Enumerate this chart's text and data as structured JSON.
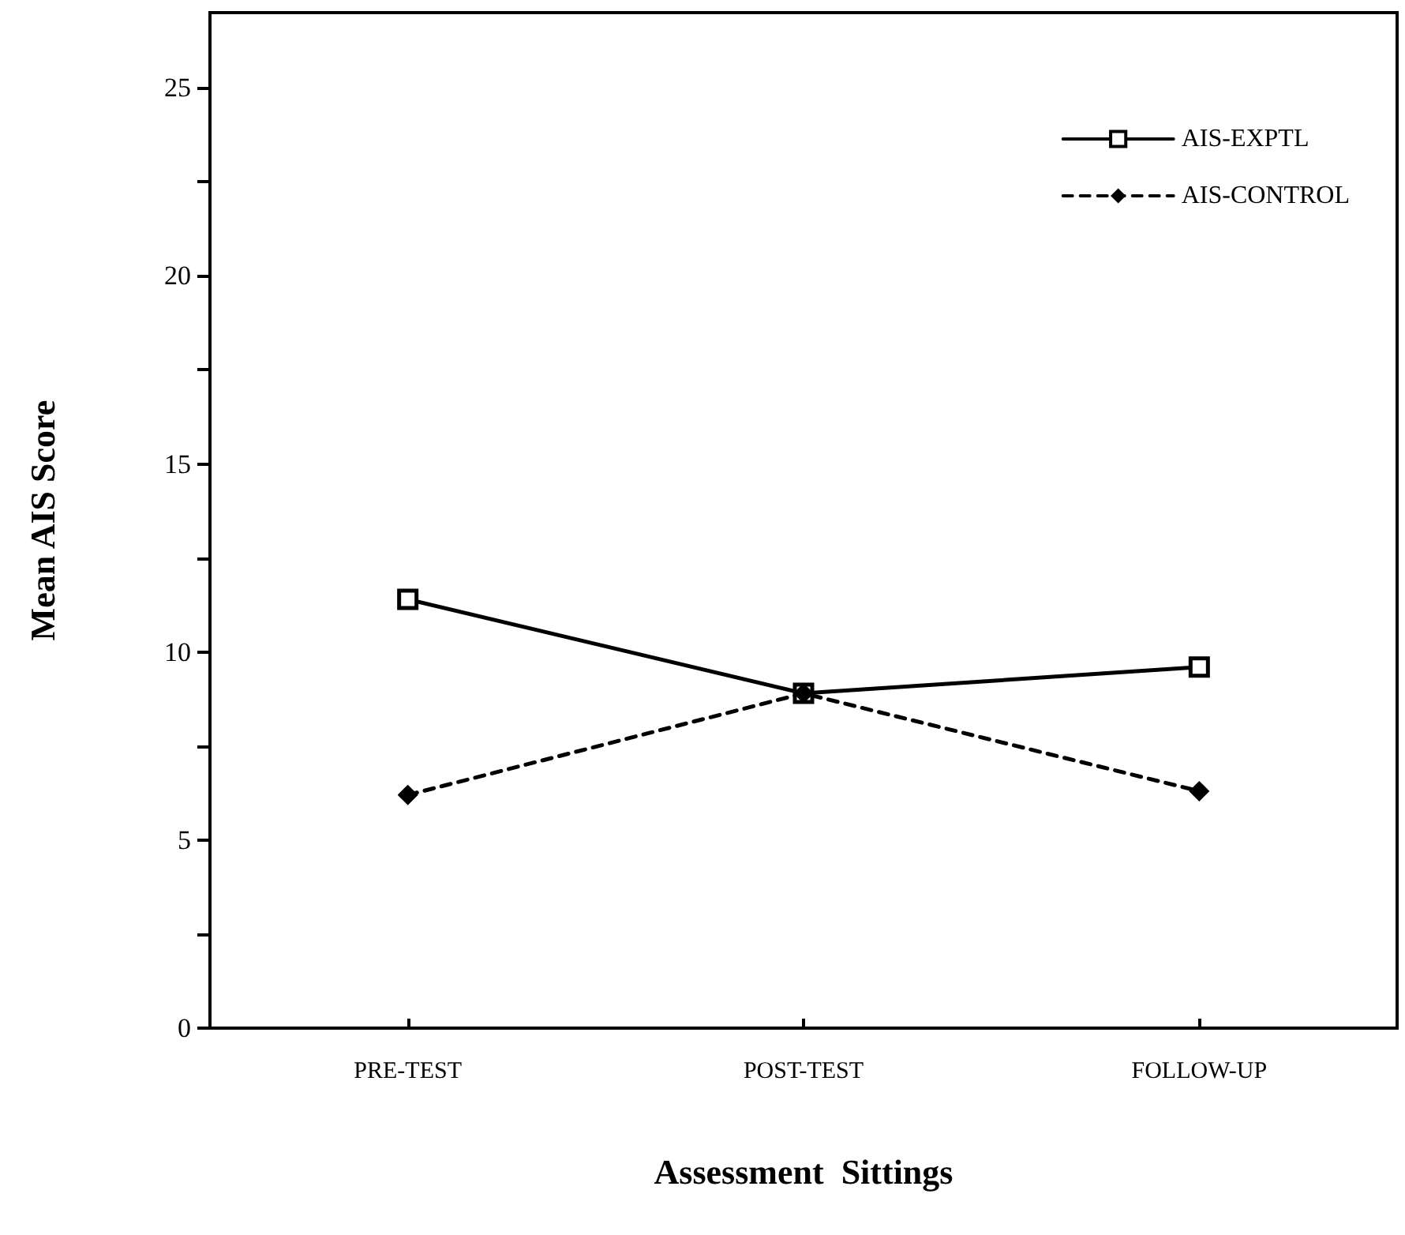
{
  "chart_data": {
    "type": "line",
    "xlabel": "Assessment  Sittings",
    "ylabel": "Mean AIS Score",
    "categories": [
      "PRE-TEST",
      "POST-TEST",
      "FOLLOW-UP"
    ],
    "series": [
      {
        "name": "AIS-EXPTL",
        "color": "#000000",
        "values": [
          11.4,
          8.9,
          9.6
        ],
        "marker": "square",
        "line_style": "solid"
      },
      {
        "name": "AIS-CONTROL",
        "color": "#000000",
        "values": [
          6.2,
          8.9,
          6.3
        ],
        "marker": "diamond",
        "line_style": "dashed"
      }
    ],
    "ylim": [
      0,
      27
    ],
    "yticks": [
      0,
      {
        "value": 2.5,
        "label": null
      },
      5,
      {
        "value": 7.5,
        "label": null
      },
      10,
      {
        "value": 12.5,
        "label": null
      },
      15,
      {
        "value": 17.5,
        "label": null
      },
      20,
      {
        "value": 22.5,
        "label": null
      },
      25
    ],
    "grid": false,
    "legend": "top right"
  }
}
